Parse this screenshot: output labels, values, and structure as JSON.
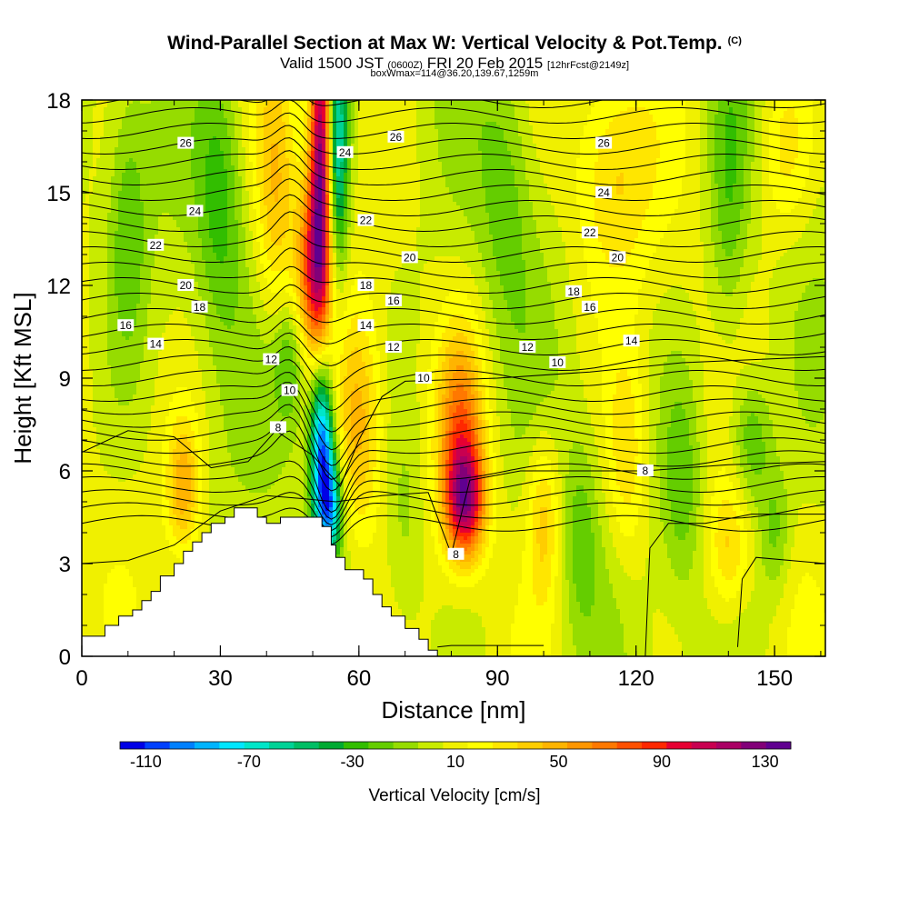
{
  "title": {
    "main": "Wind-Parallel Section at Max W: Vertical Velocity & Pot.Temp.",
    "copyright": "(C)",
    "valid": "Valid 1500 JST",
    "valid_utc": "(0600Z)",
    "date": "FRI 20 Feb 2015",
    "forecast": "[12hrFcst@2149z]",
    "box_info": "boxWmax=114@36.20,139.67,1259m"
  },
  "chart_data": {
    "type": "heatmap",
    "xlabel": "Distance [nm]",
    "ylabel": "Height [Kft MSL]",
    "xlim": [
      0,
      161
    ],
    "ylim": [
      0,
      18
    ],
    "x_ticks": [
      0,
      30,
      60,
      90,
      120,
      150
    ],
    "y_ticks": [
      0,
      3,
      6,
      9,
      12,
      15,
      18
    ],
    "colorbar": {
      "title": "Vertical Velocity [cm/s]",
      "labels": [
        "-110",
        "-70",
        "-30",
        "10",
        "50",
        "90",
        "130"
      ],
      "label_values": [
        -110,
        -70,
        -30,
        10,
        50,
        90,
        130
      ],
      "range": [
        -120,
        140
      ],
      "colors": [
        "#0000e6",
        "#0040ff",
        "#0080ff",
        "#00b4ff",
        "#00e6ff",
        "#00e6c8",
        "#00d296",
        "#00be64",
        "#00aa32",
        "#32be00",
        "#64cd00",
        "#96dc00",
        "#c8eb00",
        "#f0f000",
        "#ffff00",
        "#ffe600",
        "#ffcd00",
        "#ffb400",
        "#ff9600",
        "#ff7800",
        "#ff5000",
        "#ff2800",
        "#e60032",
        "#c80050",
        "#aa0064",
        "#820078",
        "#600090"
      ]
    },
    "terrain_profile": [
      [
        0,
        0.65
      ],
      [
        5,
        0.65
      ],
      [
        5,
        1.0
      ],
      [
        8,
        1.0
      ],
      [
        8,
        1.3
      ],
      [
        11,
        1.3
      ],
      [
        11,
        1.5
      ],
      [
        13,
        1.5
      ],
      [
        13,
        1.8
      ],
      [
        15,
        1.8
      ],
      [
        15,
        2.1
      ],
      [
        17,
        2.1
      ],
      [
        17,
        2.6
      ],
      [
        20,
        2.6
      ],
      [
        20,
        3.0
      ],
      [
        22,
        3.0
      ],
      [
        22,
        3.4
      ],
      [
        24,
        3.4
      ],
      [
        24,
        3.7
      ],
      [
        26,
        3.7
      ],
      [
        26,
        4.0
      ],
      [
        28,
        4.0
      ],
      [
        28,
        4.3
      ],
      [
        31,
        4.3
      ],
      [
        31,
        4.5
      ],
      [
        33,
        4.5
      ],
      [
        33,
        4.8
      ],
      [
        38,
        4.8
      ],
      [
        38,
        4.5
      ],
      [
        40,
        4.5
      ],
      [
        40,
        4.3
      ],
      [
        43,
        4.3
      ],
      [
        43,
        4.5
      ],
      [
        52,
        4.5
      ],
      [
        52,
        4.2
      ],
      [
        54,
        4.2
      ],
      [
        54,
        3.6
      ],
      [
        55,
        3.6
      ],
      [
        55,
        3.2
      ],
      [
        57,
        3.2
      ],
      [
        57,
        2.8
      ],
      [
        61,
        2.8
      ],
      [
        61,
        2.5
      ],
      [
        63,
        2.5
      ],
      [
        63,
        2.0
      ],
      [
        65,
        2.0
      ],
      [
        65,
        1.6
      ],
      [
        67,
        1.6
      ],
      [
        67,
        1.3
      ],
      [
        70,
        1.3
      ],
      [
        70,
        0.9
      ],
      [
        73,
        0.9
      ],
      [
        73,
        0.55
      ],
      [
        75,
        0.55
      ],
      [
        75,
        0.2
      ],
      [
        77,
        0.2
      ],
      [
        77,
        0
      ]
    ],
    "velocity_features": [
      {
        "x": 52,
        "y": 16.5,
        "amplitude": 130,
        "sx": 1.8,
        "sy": 3.5
      },
      {
        "x": 50,
        "y": 12.5,
        "amplitude": 70,
        "sx": 2.5,
        "sy": 2.0
      },
      {
        "x": 55,
        "y": 16.5,
        "amplitude": -85,
        "sx": 1.8,
        "sy": 3.0
      },
      {
        "x": 52,
        "y": 6.8,
        "amplitude": -110,
        "sx": 1.8,
        "sy": 2.0
      },
      {
        "x": 54,
        "y": 4.8,
        "amplitude": -70,
        "sx": 1.8,
        "sy": 1.2
      },
      {
        "x": 60,
        "y": 7.5,
        "amplitude": 40,
        "sx": 3.5,
        "sy": 2.5
      },
      {
        "x": 83,
        "y": 5.0,
        "amplitude": 95,
        "sx": 3.0,
        "sy": 1.3
      },
      {
        "x": 82,
        "y": 7.5,
        "amplitude": 55,
        "sx": 3.5,
        "sy": 2.2
      },
      {
        "x": 22,
        "y": 5.5,
        "amplitude": 45,
        "sx": 2.5,
        "sy": 1.5
      },
      {
        "x": 100,
        "y": 4.5,
        "amplitude": 35,
        "sx": 2.5,
        "sy": 2.0
      },
      {
        "x": 118,
        "y": 6.5,
        "amplitude": 30,
        "sx": 3.0,
        "sy": 2.5
      },
      {
        "x": 140,
        "y": 3.5,
        "amplitude": 30,
        "sx": 3.0,
        "sy": 1.5
      },
      {
        "x": 115,
        "y": 15.5,
        "amplitude": 30,
        "sx": 6.0,
        "sy": 2.5
      },
      {
        "x": 152,
        "y": 16.5,
        "amplitude": 25,
        "sx": 4.0,
        "sy": 2.0
      },
      {
        "x": 42,
        "y": 15.0,
        "amplitude": 35,
        "sx": 3.0,
        "sy": 3.0
      },
      {
        "x": 145,
        "y": 7.0,
        "amplitude": -35,
        "sx": 3.0,
        "sy": 1.5
      },
      {
        "x": 130,
        "y": 5.5,
        "amplitude": -25,
        "sx": 3.0,
        "sy": 2.5
      },
      {
        "x": 150,
        "y": 4.0,
        "amplitude": -25,
        "sx": 2.5,
        "sy": 1.5
      },
      {
        "x": 30,
        "y": 15.0,
        "amplitude": -30,
        "sx": 3.5,
        "sy": 3.0
      },
      {
        "x": 92,
        "y": 15.0,
        "amplitude": -20,
        "sx": 4.0,
        "sy": 3.0
      },
      {
        "x": 10,
        "y": 14.0,
        "amplitude": -25,
        "sx": 3.0,
        "sy": 3.0
      },
      {
        "x": 140,
        "y": 14.5,
        "amplitude": -25,
        "sx": 3.0,
        "sy": 3.5
      },
      {
        "x": 45,
        "y": 9.5,
        "amplitude": -30,
        "sx": 2.5,
        "sy": 1.5
      },
      {
        "x": 108,
        "y": 4.0,
        "amplitude": -20,
        "sx": 2.5,
        "sy": 2.0
      },
      {
        "x": 70,
        "y": 4.0,
        "amplitude": -15,
        "sx": 3.0,
        "sy": 2.5
      }
    ],
    "contour_labels": [
      {
        "text": "26",
        "x": 22.5,
        "y": 16.6
      },
      {
        "text": "24",
        "x": 57,
        "y": 16.3
      },
      {
        "text": "26",
        "x": 68,
        "y": 16.8
      },
      {
        "text": "26",
        "x": 113,
        "y": 16.6
      },
      {
        "text": "24",
        "x": 24.5,
        "y": 14.4
      },
      {
        "text": "24",
        "x": 113,
        "y": 15.0
      },
      {
        "text": "22",
        "x": 61.5,
        "y": 14.1
      },
      {
        "text": "22",
        "x": 16,
        "y": 13.3
      },
      {
        "text": "22",
        "x": 110,
        "y": 13.7
      },
      {
        "text": "20",
        "x": 71,
        "y": 12.9
      },
      {
        "text": "20",
        "x": 22.5,
        "y": 12.0
      },
      {
        "text": "20",
        "x": 116,
        "y": 12.9
      },
      {
        "text": "18",
        "x": 61.5,
        "y": 12.0
      },
      {
        "text": "18",
        "x": 25.5,
        "y": 11.3
      },
      {
        "text": "18",
        "x": 106.5,
        "y": 11.8
      },
      {
        "text": "16",
        "x": 67.5,
        "y": 11.5
      },
      {
        "text": "16",
        "x": 9.5,
        "y": 10.7
      },
      {
        "text": "16",
        "x": 110,
        "y": 11.3
      },
      {
        "text": "14",
        "x": 61.5,
        "y": 10.7
      },
      {
        "text": "14",
        "x": 16,
        "y": 10.1
      },
      {
        "text": "14",
        "x": 119,
        "y": 10.2
      },
      {
        "text": "12",
        "x": 41,
        "y": 9.6
      },
      {
        "text": "12",
        "x": 67.5,
        "y": 10.0
      },
      {
        "text": "12",
        "x": 96.5,
        "y": 10.0
      },
      {
        "text": "10",
        "x": 45,
        "y": 8.6
      },
      {
        "text": "10",
        "x": 74,
        "y": 9.0
      },
      {
        "text": "10",
        "x": 103,
        "y": 9.5
      },
      {
        "text": "8",
        "x": 42.5,
        "y": 7.4
      },
      {
        "text": "8",
        "x": 81,
        "y": 3.3
      },
      {
        "text": "8",
        "x": 122,
        "y": 6.0
      }
    ]
  }
}
